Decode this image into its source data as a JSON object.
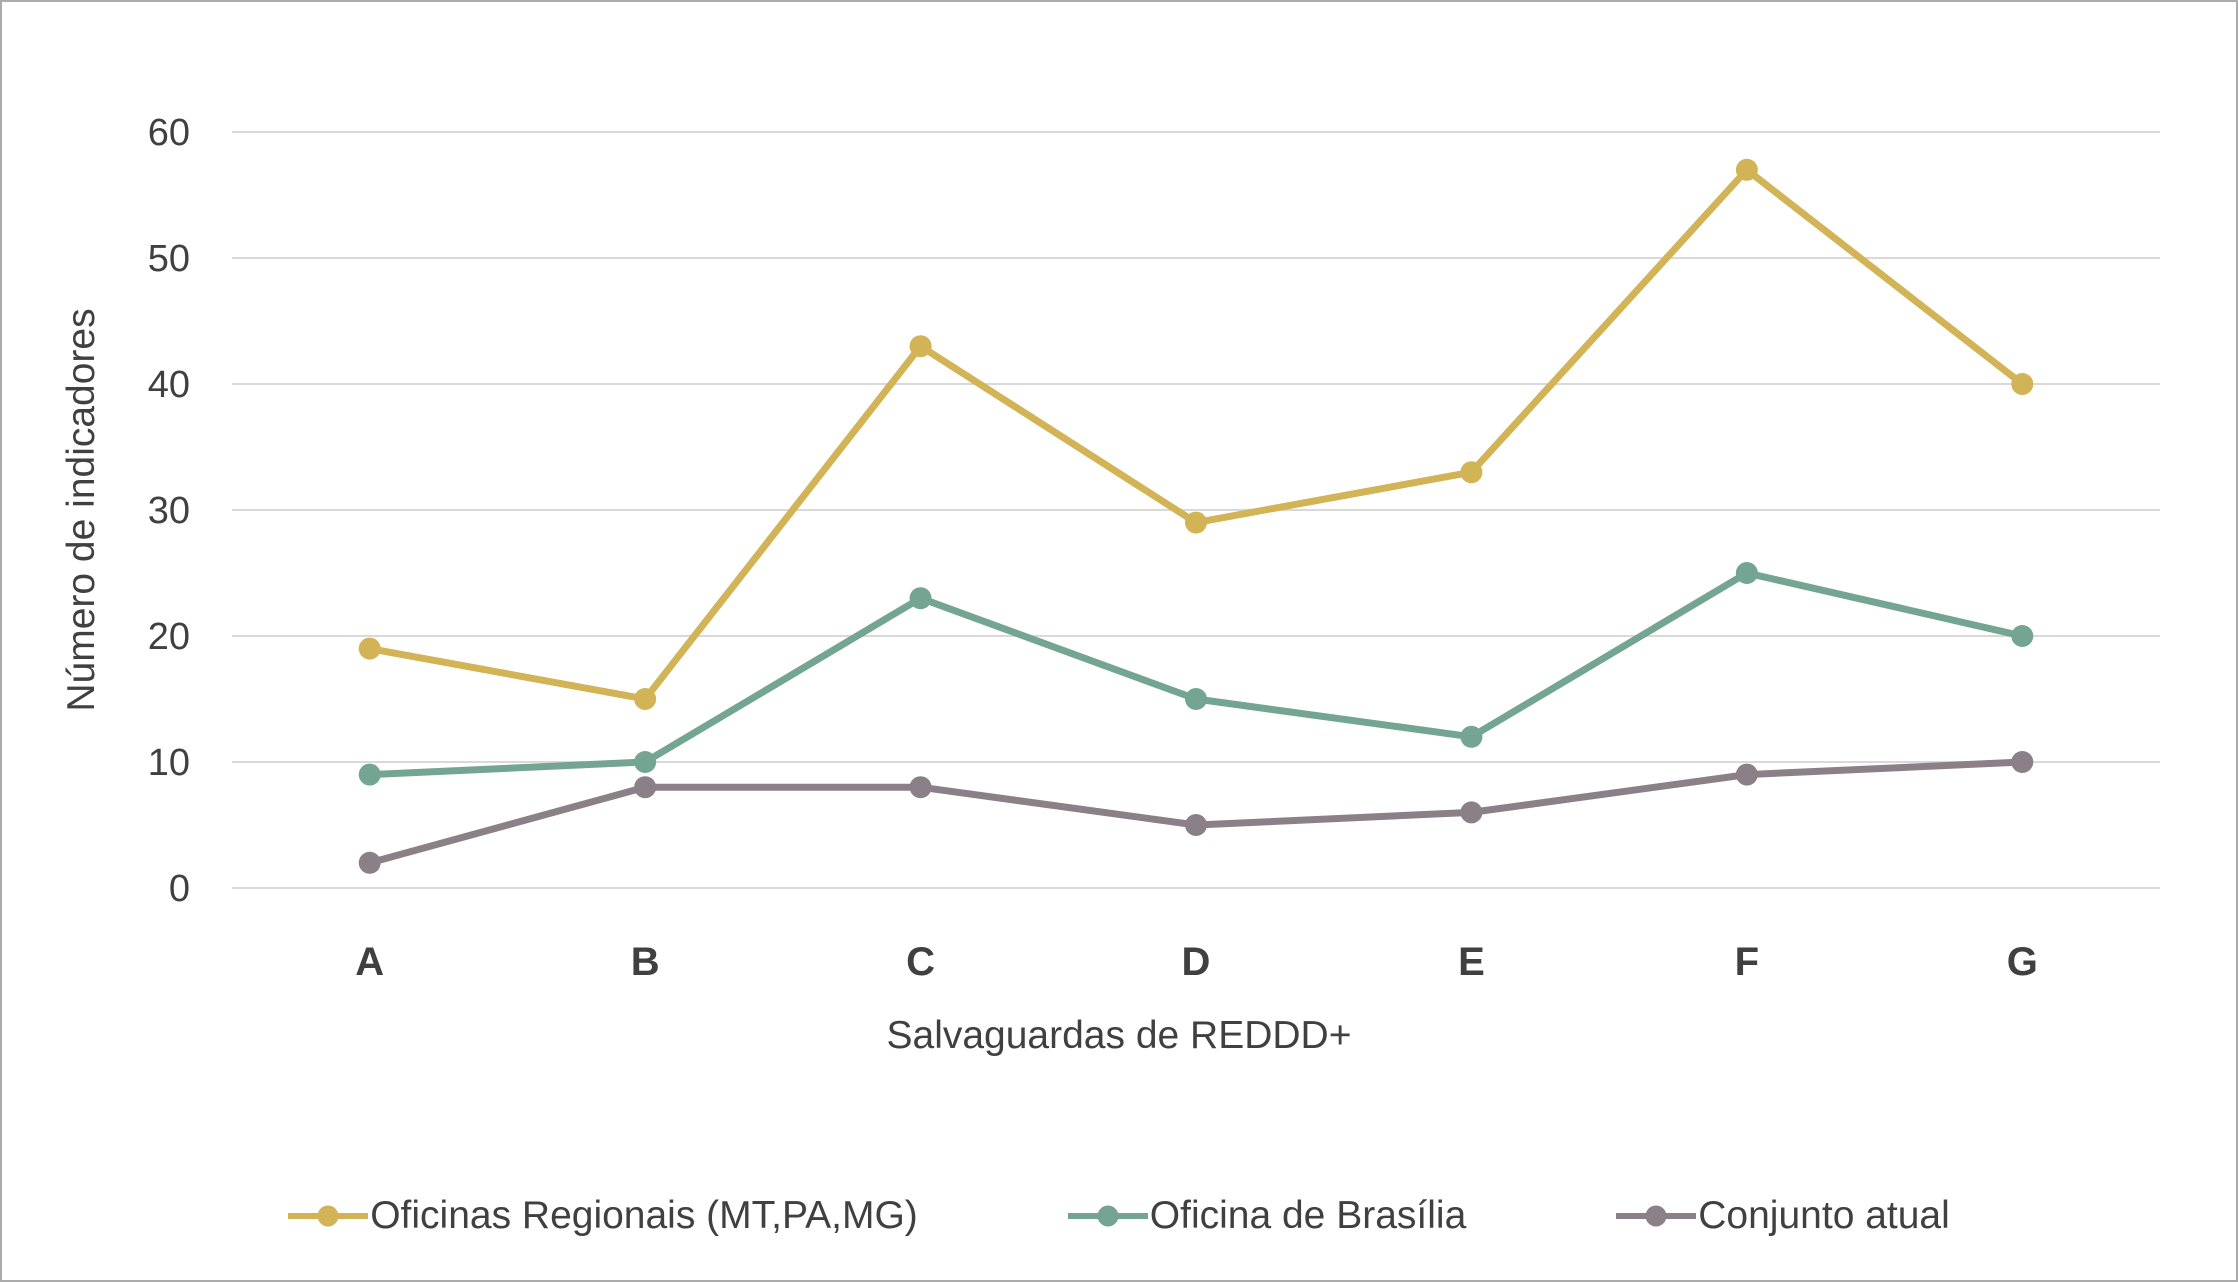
{
  "chart_data": {
    "type": "line",
    "categories": [
      "A",
      "B",
      "C",
      "D",
      "E",
      "F",
      "G"
    ],
    "series": [
      {
        "name": "Oficinas Regionais (MT,PA,MG)",
        "color": "#D2B356",
        "values": [
          19,
          15,
          43,
          29,
          33,
          57,
          40
        ]
      },
      {
        "name": "Oficina de Brasília",
        "color": "#74A593",
        "values": [
          9,
          10,
          23,
          15,
          12,
          25,
          20
        ]
      },
      {
        "name": "Conjunto atual",
        "color": "#8B8088",
        "values": [
          2,
          8,
          8,
          5,
          6,
          9,
          10
        ]
      }
    ],
    "title": "",
    "xlabel": "Salvaguardas de REDDD+",
    "ylabel": "Número de indicadores",
    "ylim": [
      0,
      60
    ],
    "ytick_step": 10,
    "yticks": [
      "0",
      "10",
      "20",
      "30",
      "40",
      "50",
      "60"
    ],
    "grid": true,
    "legend_position": "bottom"
  },
  "styles": {
    "grid_color": "#D9D9D9",
    "text_color": "#404040",
    "border_color": "#ABABAB",
    "background_color": "#FFFFFF"
  }
}
